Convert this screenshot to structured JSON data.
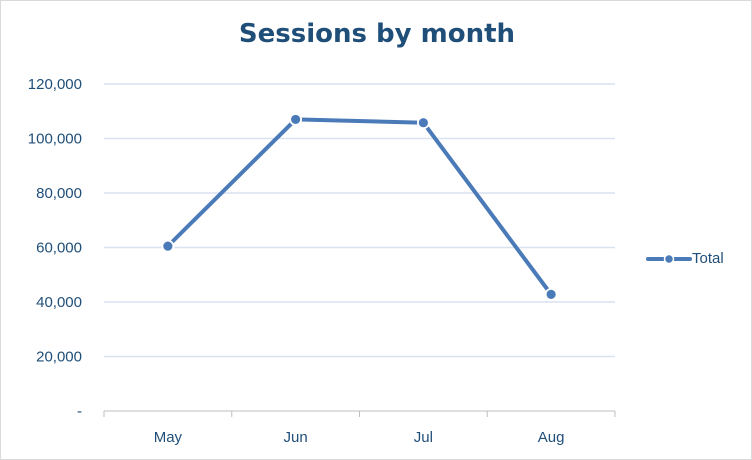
{
  "chart_data": {
    "type": "line",
    "title": "Sessions by month",
    "categories": [
      "May",
      "Jun",
      "Jul",
      "Aug"
    ],
    "series": [
      {
        "name": "Total",
        "values": [
          60500,
          107000,
          105800,
          42800
        ],
        "color": "#4a7ab7"
      }
    ],
    "ylim": [
      0,
      120000
    ],
    "yticks": [
      0,
      20000,
      40000,
      60000,
      80000,
      100000,
      120000
    ],
    "ytick_labels": [
      "-",
      "20,000",
      "40,000",
      "60,000",
      "80,000",
      "100,000",
      "120,000"
    ],
    "grid": true,
    "legend_position": "right",
    "colors": {
      "title": "#1f4e79",
      "text": "#1f4e79",
      "grid": "#d9e2f0",
      "axis": "#bfbfbf"
    }
  }
}
